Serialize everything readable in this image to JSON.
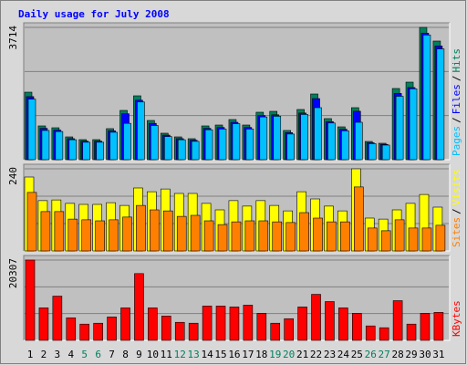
{
  "chart_data": [
    {
      "type": "bar",
      "title": "Daily usage for July 2008",
      "ylim": [
        0,
        3714
      ],
      "yticks": [
        3714
      ],
      "series": [
        {
          "name": "Hits",
          "color": "#00805c",
          "values": [
            1895,
            948,
            896,
            640,
            563,
            563,
            871,
            1383,
            1793,
            1101,
            743,
            640,
            589,
            948,
            973,
            1127,
            973,
            1332,
            1357,
            820,
            1409,
            1844,
            1153,
            922,
            1460,
            512,
            461,
            1998,
            2177,
            3714,
            3330
          ]
        },
        {
          "name": "Files",
          "color": "#0000ff",
          "values": [
            1770,
            880,
            830,
            590,
            520,
            520,
            810,
            1290,
            1670,
            1020,
            690,
            590,
            545,
            880,
            905,
            1050,
            905,
            1240,
            1260,
            760,
            1310,
            1715,
            1070,
            855,
            1360,
            475,
            430,
            1860,
            2025,
            3550,
            3190
          ]
        },
        {
          "name": "Pages",
          "color": "#00c0ff",
          "values": [
            1700,
            820,
            790,
            560,
            490,
            490,
            770,
            1020,
            1620,
            960,
            650,
            560,
            515,
            840,
            860,
            1010,
            860,
            1200,
            1220,
            720,
            1270,
            1460,
            1030,
            810,
            1050,
            450,
            410,
            1780,
            1990,
            3500,
            3110
          ]
        }
      ]
    },
    {
      "type": "bar",
      "ylim": [
        0,
        240
      ],
      "yticks": [
        240
      ],
      "series": [
        {
          "name": "Visits",
          "color": "#ffff00",
          "values": [
            216,
            147,
            149,
            139,
            136,
            136,
            141,
            133,
            184,
            173,
            181,
            168,
            168,
            139,
            120,
            147,
            131,
            147,
            133,
            117,
            173,
            152,
            131,
            117,
            240,
            96,
            93,
            120,
            139,
            165,
            128
          ]
        },
        {
          "name": "Sites",
          "color": "#ff8000",
          "values": [
            171,
            115,
            115,
            93,
            91,
            88,
            91,
            99,
            133,
            120,
            117,
            101,
            104,
            88,
            77,
            85,
            88,
            88,
            85,
            83,
            112,
            96,
            85,
            85,
            187,
            67,
            59,
            91,
            67,
            67,
            75
          ]
        }
      ]
    },
    {
      "type": "bar",
      "ylim": [
        0,
        20307
      ],
      "yticks": [
        20307
      ],
      "series": [
        {
          "name": "KBytes",
          "color": "#ff0000",
          "values": [
            20307,
            8214,
            11180,
            5704,
            4107,
            4335,
            5932,
            8214,
            16884,
            8214,
            6160,
            4563,
            4335,
            8670,
            8670,
            8442,
            8898,
            6845,
            4335,
            5476,
            8442,
            11636,
            9811,
            8214,
            6845,
            3651,
            3194,
            10039,
            4107,
            6845,
            7073
          ]
        }
      ],
      "categories": [
        "1",
        "2",
        "3",
        "4",
        "5",
        "6",
        "7",
        "8",
        "9",
        "10",
        "11",
        "12",
        "13",
        "14",
        "15",
        "16",
        "17",
        "18",
        "19",
        "20",
        "21",
        "22",
        "23",
        "24",
        "25",
        "26",
        "27",
        "28",
        "29",
        "30",
        "31"
      ],
      "category_colors": [
        "#000000",
        "#000000",
        "#000000",
        "#000000",
        "#00805c",
        "#00805c",
        "#000000",
        "#000000",
        "#000000",
        "#000000",
        "#000000",
        "#00805c",
        "#00805c",
        "#000000",
        "#000000",
        "#000000",
        "#000000",
        "#000000",
        "#00805c",
        "#00805c",
        "#000000",
        "#000000",
        "#000000",
        "#000000",
        "#000000",
        "#00805c",
        "#00805c",
        "#000000",
        "#000000",
        "#000000",
        "#000000"
      ]
    }
  ],
  "legend_separator": "/"
}
